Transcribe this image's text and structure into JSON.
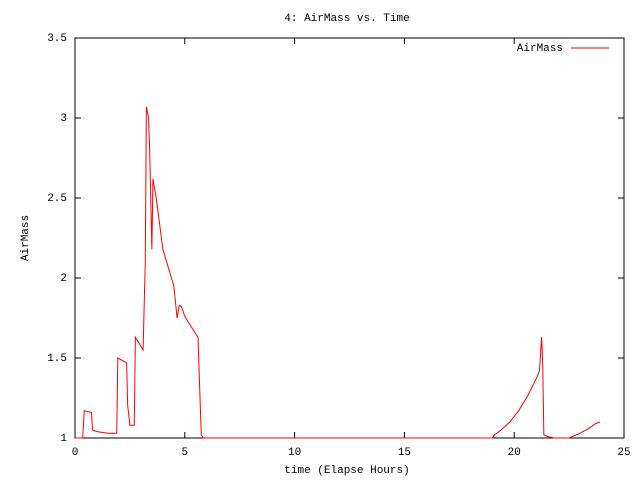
{
  "chart_data": {
    "type": "line",
    "title": "4: AirMass vs. Time",
    "xlabel": "time (Elapse Hours)",
    "ylabel": "AirMass",
    "x": [
      0,
      0.35,
      0.42,
      0.75,
      0.8,
      1.0,
      1.5,
      1.9,
      1.95,
      2.35,
      2.4,
      2.5,
      2.7,
      2.75,
      3.1,
      3.2,
      3.25,
      3.35,
      3.4,
      3.5,
      3.55,
      3.7,
      4.0,
      4.5,
      4.65,
      4.75,
      4.85,
      5.0,
      5.5,
      5.6,
      5.75,
      5.85,
      19.0,
      19.1,
      19.4,
      19.8,
      20.2,
      20.6,
      21.0,
      21.15,
      21.25,
      21.3,
      21.35,
      21.5,
      21.8,
      22.5,
      23.0,
      23.4,
      23.7,
      23.9
    ],
    "series": [
      {
        "name": "AirMass",
        "color": "#ff0000",
        "values": [
          1.0,
          1.0,
          1.17,
          1.16,
          1.05,
          1.04,
          1.03,
          1.03,
          1.5,
          1.47,
          1.2,
          1.08,
          1.08,
          1.63,
          1.55,
          2.1,
          3.07,
          3.0,
          2.8,
          2.18,
          2.62,
          2.5,
          2.18,
          1.95,
          1.75,
          1.83,
          1.82,
          1.76,
          1.65,
          1.63,
          1.02,
          1.0,
          1.0,
          1.02,
          1.05,
          1.1,
          1.17,
          1.26,
          1.37,
          1.42,
          1.63,
          1.45,
          1.02,
          1.01,
          1.0,
          1.0,
          1.03,
          1.06,
          1.09,
          1.1
        ]
      }
    ],
    "xlim": [
      0,
      25
    ],
    "xticks": [
      0,
      5,
      10,
      15,
      20,
      25
    ],
    "ylim": [
      1,
      3.5
    ],
    "yticks": [
      1,
      1.5,
      2,
      2.5,
      3,
      3.5
    ],
    "legend": "upper right"
  }
}
